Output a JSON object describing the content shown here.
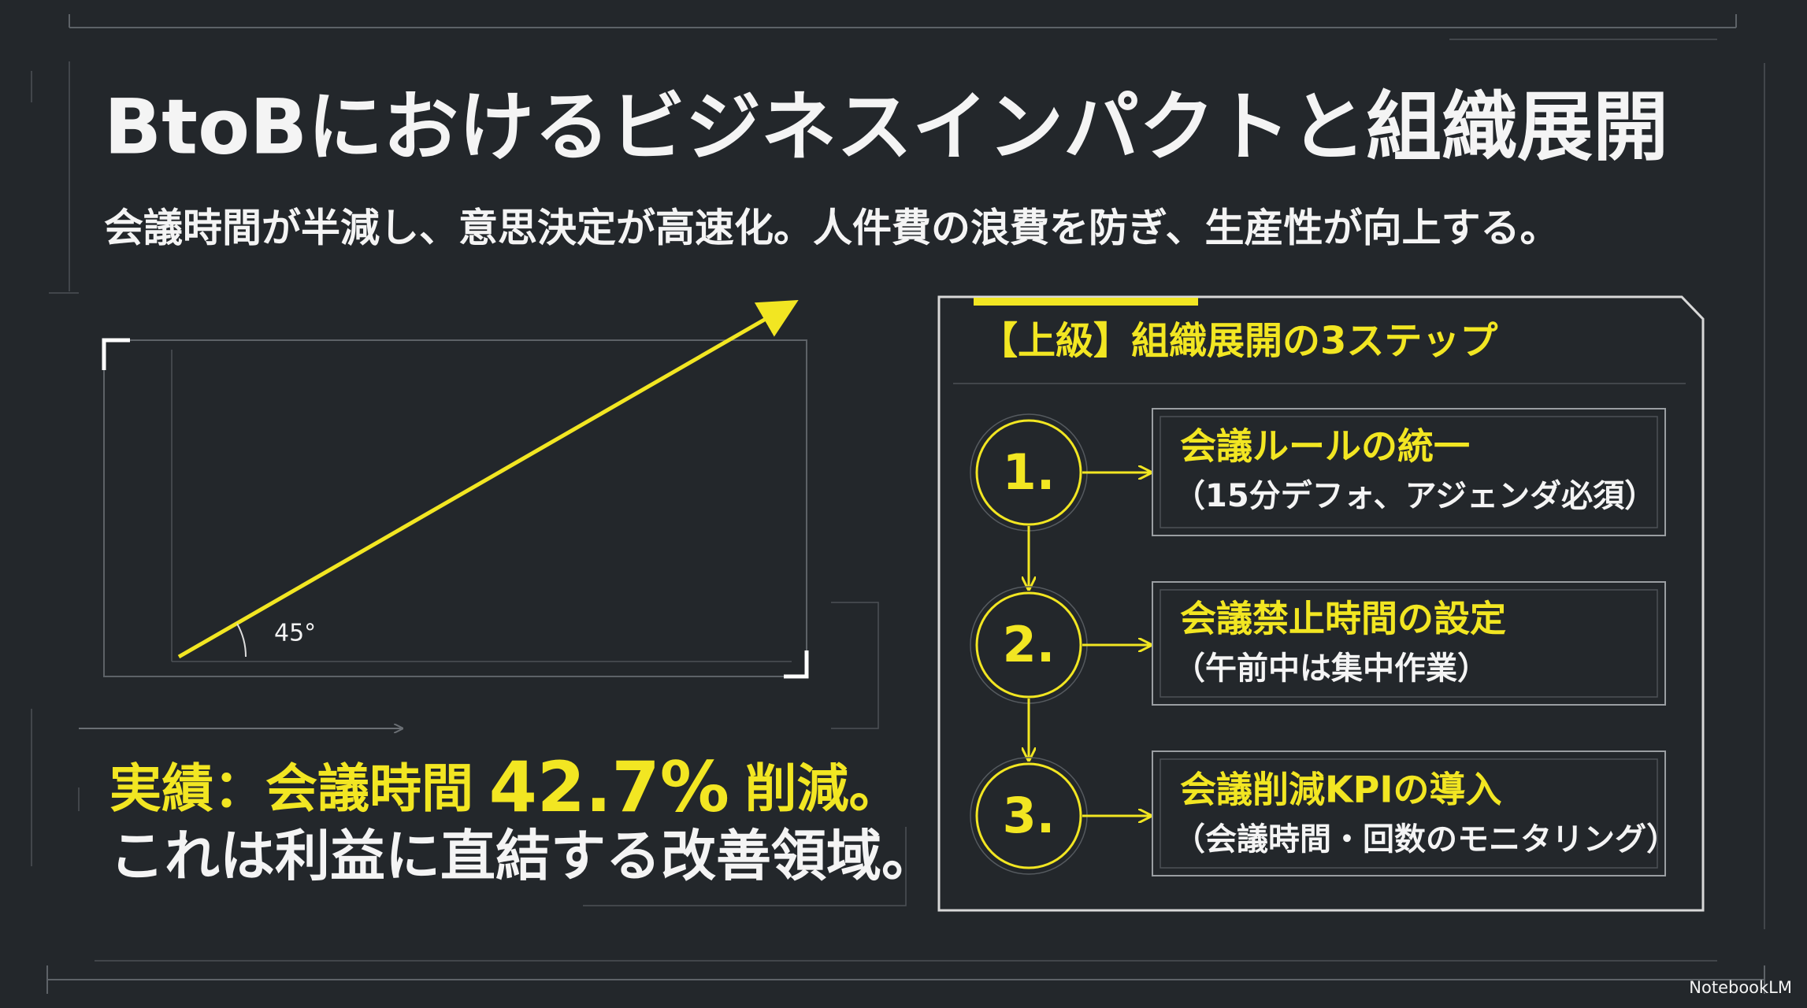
{
  "header": {
    "title": "BtoBにおけるビジネスインパクトと組織展開",
    "subtitle": "会議時間が半減し、意思決定が高速化。人件費の浪費を防ぎ、生産性が向上する。"
  },
  "diagram": {
    "angle_label": "45°"
  },
  "result": {
    "prefix": "実績：会議時間",
    "figure": "42.7%",
    "suffix": "削減。",
    "line2": "これは利益に直結する改善領域。"
  },
  "panel": {
    "heading": "【上級】組織展開の3ステップ",
    "steps": [
      {
        "number": "1.",
        "title": "会議ルールの統一",
        "detail": "（15分デフォ、アジェンダ必須）"
      },
      {
        "number": "2.",
        "title": "会議禁止時間の設定",
        "detail": "（午前中は集中作業）"
      },
      {
        "number": "3.",
        "title": "会議削減KPIの導入",
        "detail": "（会議時間・回数のモニタリング）"
      }
    ]
  },
  "footer": {
    "brand": "NotebookLM"
  }
}
